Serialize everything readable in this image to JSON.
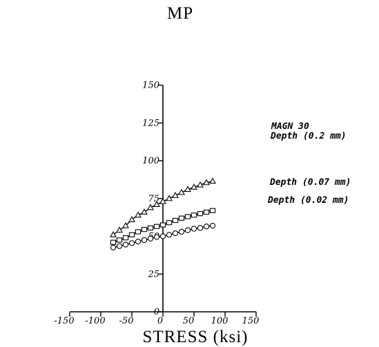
{
  "chart_data": {
    "type": "line",
    "xlabel": "STRESS (ksi)",
    "ylabel": "MP",
    "xlim": [
      -150,
      150
    ],
    "ylim": [
      0,
      150
    ],
    "xticks": [
      -150,
      -100,
      -50,
      0,
      50,
      100,
      150
    ],
    "yticks": [
      0,
      25,
      50,
      75,
      100,
      125,
      150
    ],
    "grid": false,
    "series": [
      {
        "name": "MAGN 30 Depth (0.2 mm)",
        "marker": "triangle",
        "x": [
          -80,
          -70,
          -60,
          -50,
          -40,
          -30,
          -20,
          -10,
          0,
          10,
          20,
          30,
          40,
          50,
          60,
          70,
          80
        ],
        "values": [
          51,
          54,
          57,
          61,
          64,
          66,
          69,
          71,
          73,
          75,
          77,
          79,
          81,
          82.5,
          84,
          85.5,
          86.5
        ]
      },
      {
        "name": "Depth (0.07 mm)",
        "marker": "square",
        "x": [
          -80,
          -70,
          -60,
          -50,
          -40,
          -30,
          -20,
          -10,
          0,
          10,
          20,
          30,
          40,
          50,
          60,
          70,
          80
        ],
        "values": [
          46,
          47.5,
          49,
          51,
          53,
          54.5,
          55.5,
          56.5,
          57.5,
          59,
          60.5,
          62,
          63,
          64,
          65,
          66,
          67
        ]
      },
      {
        "name": "Depth (0.02 mm)",
        "marker": "circle",
        "x": [
          -80,
          -70,
          -60,
          -50,
          -40,
          -30,
          -20,
          -10,
          0,
          10,
          20,
          30,
          40,
          50,
          60,
          70,
          80
        ],
        "values": [
          42.5,
          43.5,
          44.5,
          45.5,
          46.5,
          47.5,
          48.5,
          49.5,
          50,
          51,
          52,
          53,
          54,
          55,
          55.5,
          56.5,
          57
        ]
      }
    ],
    "labels": [
      {
        "lines": [
          "MAGN 30",
          "Depth (0.2 mm)"
        ]
      },
      {
        "lines": [
          "Depth (0.07 mm)"
        ]
      },
      {
        "lines": [
          "Depth (0.02 mm)"
        ]
      }
    ]
  }
}
